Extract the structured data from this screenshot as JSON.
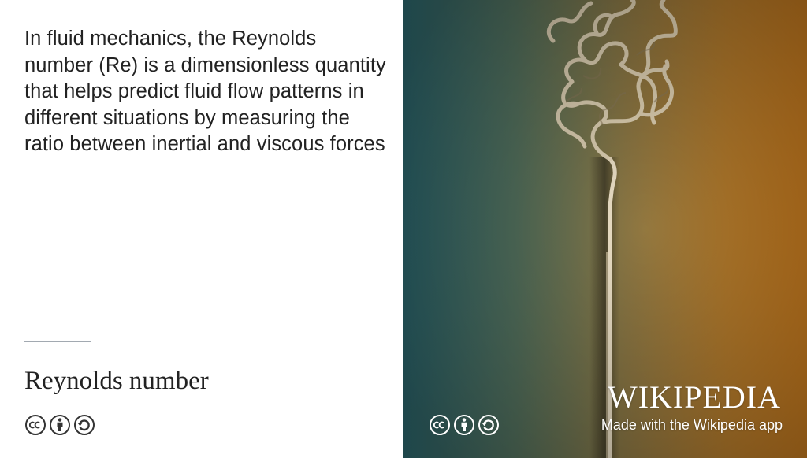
{
  "article": {
    "extract": "In fluid mechanics, the Reynolds number (Re) is a dimensionless quantity that helps predict fluid flow patterns in different situations by measuring the ratio between inertial and viscous forces",
    "title": "Reynolds number"
  },
  "branding": {
    "wordmark": "WIKIPEDIA",
    "made_with": "Made with the Wikipedia app"
  },
  "license_icons": [
    "cc-icon",
    "by-attribution-icon",
    "share-alike-icon"
  ],
  "colors": {
    "text": "#222222",
    "divider": "#a2a9b1",
    "photo_left": "#2f6d74",
    "photo_right": "#c57a1f",
    "plume": "#e8dcc4"
  }
}
